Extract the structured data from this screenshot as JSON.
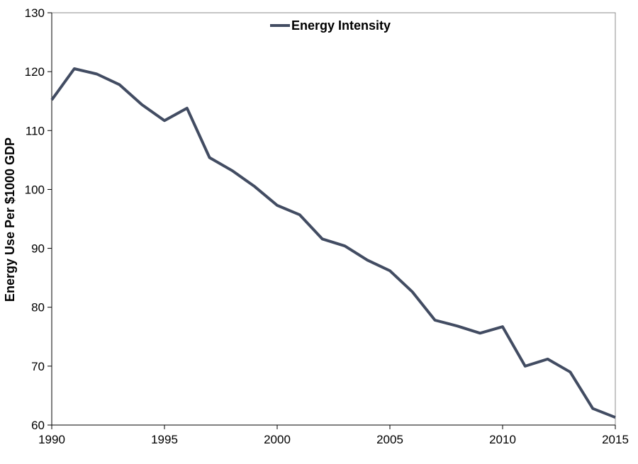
{
  "chart_data": {
    "type": "line",
    "ylabel": "Energy Use Per $1000 GDP",
    "xlim": [
      1990,
      2015
    ],
    "ylim": [
      60,
      130
    ],
    "x_ticks": [
      1990,
      1995,
      2000,
      2005,
      2010,
      2015
    ],
    "y_ticks": [
      60,
      70,
      80,
      90,
      100,
      110,
      120,
      130
    ],
    "grid": false,
    "legend_position": "top-center",
    "series": [
      {
        "name": "Energy Intensity",
        "color": "#424c62",
        "x": [
          1990,
          1991,
          1992,
          1993,
          1994,
          1995,
          1996,
          1997,
          1998,
          1999,
          2000,
          2001,
          2002,
          2003,
          2004,
          2005,
          2006,
          2007,
          2008,
          2009,
          2010,
          2011,
          2012,
          2013,
          2014,
          2015
        ],
        "y": [
          115.2,
          120.5,
          119.6,
          117.8,
          114.4,
          111.7,
          113.8,
          105.4,
          103.2,
          100.5,
          97.3,
          95.7,
          91.6,
          90.4,
          88.0,
          86.2,
          82.6,
          77.8,
          76.8,
          75.6,
          76.7,
          70.0,
          71.2,
          69.0,
          62.8,
          61.3
        ]
      }
    ]
  }
}
